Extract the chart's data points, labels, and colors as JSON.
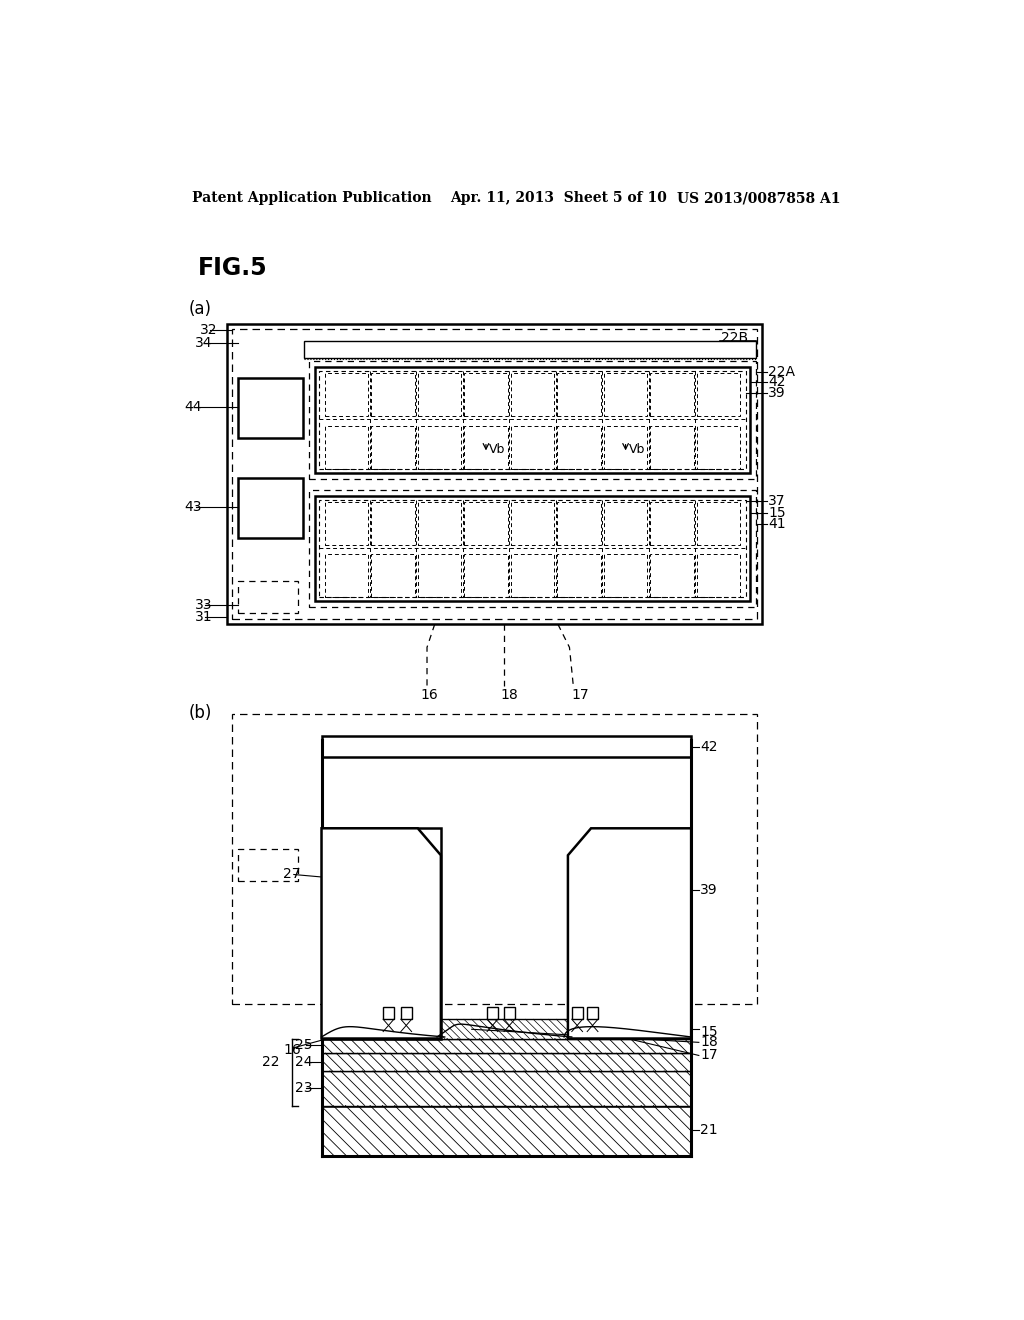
{
  "background_color": "#ffffff",
  "header_left": "Patent Application Publication",
  "header_center": "Apr. 11, 2013  Sheet 5 of 10",
  "header_right": "US 2013/0087858 A1",
  "fig_label": "FIG.5",
  "sub_a": "(a)",
  "sub_b": "(b)"
}
